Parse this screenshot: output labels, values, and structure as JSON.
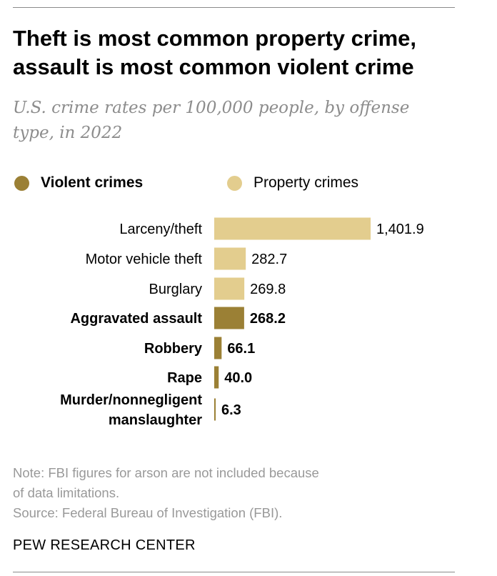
{
  "title_lines": [
    "Theft is most common property crime,",
    "assault is most common violent crime"
  ],
  "subtitle_lines": [
    "U.S. crime rates per 100,000 people, by offense",
    "type, in 2022"
  ],
  "legend": {
    "violent": {
      "label": "Violent crimes",
      "color": "#9b8035"
    },
    "property": {
      "label": "Property crimes",
      "color": "#e3cd8e"
    }
  },
  "notes": {
    "note_line1": "Note: FBI figures for arson are not included because",
    "note_line2": "of data limitations.",
    "source": "Source: Federal Bureau of Investigation (FBI)."
  },
  "brand": "PEW RESEARCH CENTER",
  "chart_data": {
    "type": "bar",
    "orientation": "horizontal",
    "categories": [
      "Larceny/theft",
      "Motor vehicle theft",
      "Burglary",
      "Aggravated assault",
      "Robbery",
      "Rape",
      "Murder/nonnegligent manslaughter"
    ],
    "values": [
      1401.9,
      282.7,
      269.8,
      268.2,
      66.1,
      40.0,
      6.3
    ],
    "value_labels": [
      "1,401.9",
      "282.7",
      "269.8",
      "268.2",
      "66.1",
      "40.0",
      "6.3"
    ],
    "crime_type": [
      "property",
      "property",
      "property",
      "violent",
      "violent",
      "violent",
      "violent"
    ],
    "series": [
      {
        "name": "Violent crimes",
        "color": "#9b8035"
      },
      {
        "name": "Property crimes",
        "color": "#e3cd8e"
      }
    ],
    "xlim": [
      0,
      1401.9
    ],
    "grid": false,
    "legend_position": "top-left"
  }
}
